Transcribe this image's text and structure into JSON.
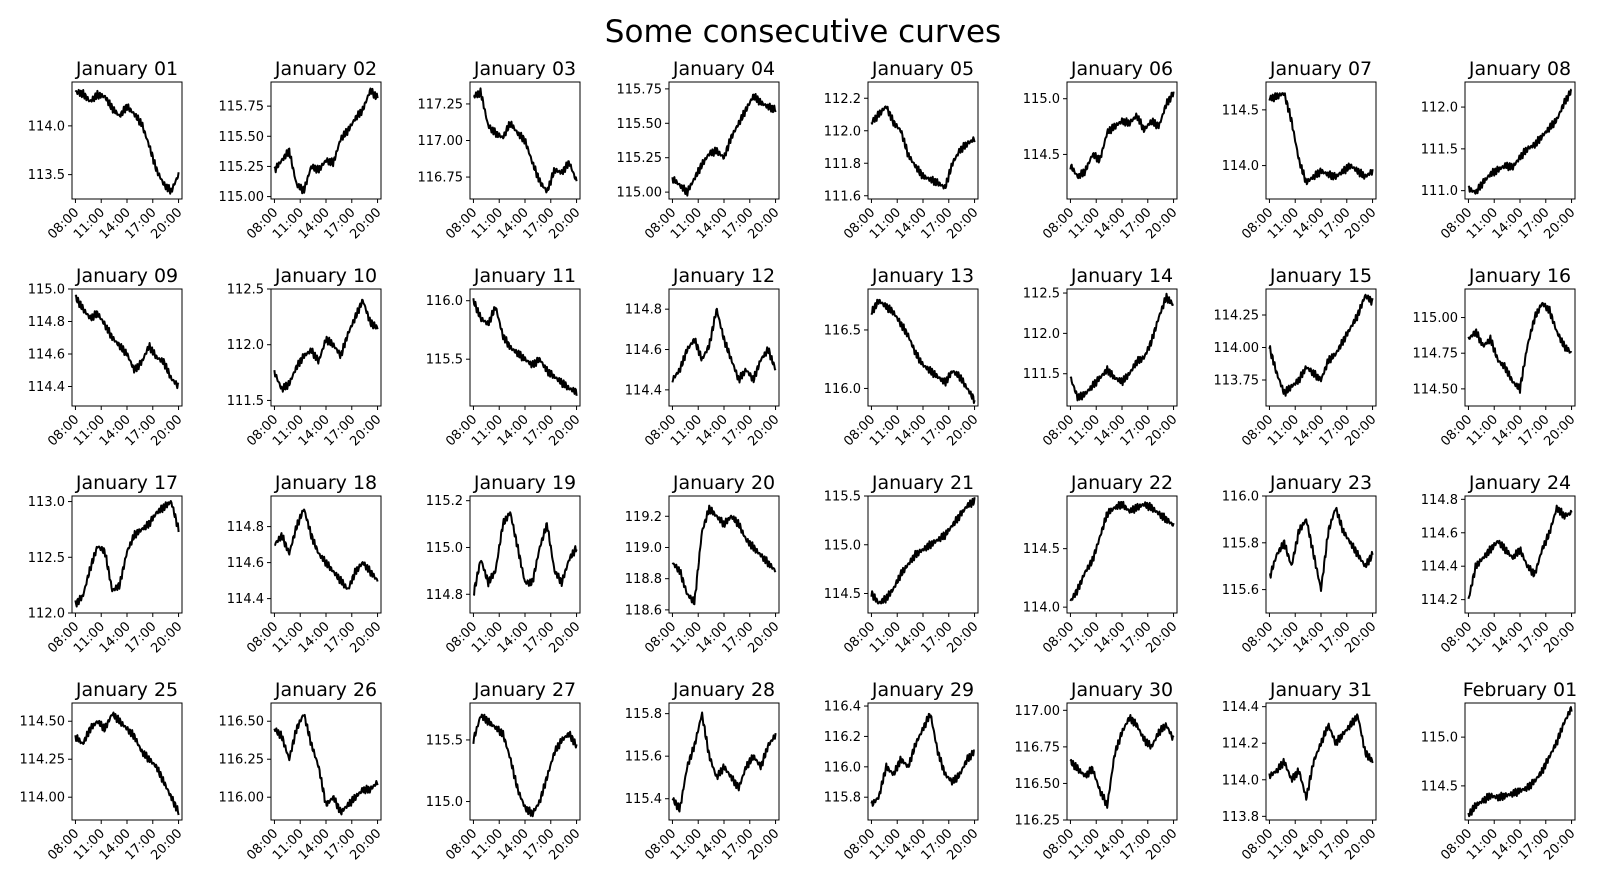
{
  "chart_data": {
    "type": "line",
    "title": "Some consecutive curves",
    "xtick_labels": [
      "08:00",
      "11:00",
      "14:00",
      "17:00",
      "20:00"
    ],
    "x_range_hours": [
      7.6,
      20.4
    ],
    "panels": [
      {
        "title": "January 01",
        "ylim": [
          113.25,
          114.45
        ],
        "yticks": [
          113.5,
          114.0
        ],
        "ytick_labels": [
          "113.5",
          "114.0"
        ],
        "y": [
          114.35,
          114.33,
          114.25,
          114.32,
          114.3,
          114.18,
          114.1,
          114.2,
          114.12,
          114.02,
          113.8,
          113.55,
          113.4,
          113.33,
          113.5
        ]
      },
      {
        "title": "January 02",
        "ylim": [
          114.98,
          115.95
        ],
        "yticks": [
          115.0,
          115.25,
          115.5,
          115.75
        ],
        "ytick_labels": [
          "115.00",
          "115.25",
          "115.50",
          "115.75"
        ],
        "y": [
          115.22,
          115.3,
          115.38,
          115.1,
          115.05,
          115.25,
          115.22,
          115.3,
          115.28,
          115.48,
          115.55,
          115.65,
          115.72,
          115.88,
          115.82
        ]
      },
      {
        "title": "January 03",
        "ylim": [
          116.6,
          117.4
        ],
        "yticks": [
          116.75,
          117.0,
          117.25
        ],
        "ytick_labels": [
          "116.75",
          "117.00",
          "117.25"
        ],
        "y": [
          117.3,
          117.33,
          117.1,
          117.05,
          117.02,
          117.12,
          117.05,
          117.0,
          116.85,
          116.72,
          116.65,
          116.8,
          116.78,
          116.85,
          116.72
        ]
      },
      {
        "title": "January 04",
        "ylim": [
          114.95,
          115.8
        ],
        "yticks": [
          115.0,
          115.25,
          115.5,
          115.75
        ],
        "ytick_labels": [
          "115.00",
          "115.25",
          "115.50",
          "115.75"
        ],
        "y": [
          115.1,
          115.05,
          115.0,
          115.1,
          115.2,
          115.28,
          115.3,
          115.25,
          115.4,
          115.5,
          115.6,
          115.7,
          115.65,
          115.62,
          115.6
        ]
      },
      {
        "title": "January 05",
        "ylim": [
          111.58,
          112.3
        ],
        "yticks": [
          111.6,
          111.8,
          112.0,
          112.2
        ],
        "ytick_labels": [
          "111.6",
          "111.8",
          "112.0",
          "112.2"
        ],
        "y": [
          112.05,
          112.1,
          112.15,
          112.05,
          112.0,
          111.85,
          111.78,
          111.72,
          111.7,
          111.68,
          111.65,
          111.8,
          111.88,
          111.92,
          111.95
        ]
      },
      {
        "title": "January 06",
        "ylim": [
          114.1,
          115.15
        ],
        "yticks": [
          114.5,
          115.0
        ],
        "ytick_labels": [
          "114.5",
          "115.0"
        ],
        "y": [
          114.4,
          114.3,
          114.35,
          114.5,
          114.45,
          114.7,
          114.75,
          114.8,
          114.78,
          114.85,
          114.72,
          114.8,
          114.75,
          114.95,
          115.05
        ]
      },
      {
        "title": "January 07",
        "ylim": [
          113.7,
          114.75
        ],
        "yticks": [
          114.0,
          114.5
        ],
        "ytick_labels": [
          "114.0",
          "114.5"
        ],
        "y": [
          114.6,
          114.62,
          114.65,
          114.4,
          114.05,
          113.85,
          113.9,
          113.95,
          113.92,
          113.9,
          113.95,
          114.0,
          113.95,
          113.9,
          113.95
        ]
      },
      {
        "title": "January 08",
        "ylim": [
          110.9,
          112.3
        ],
        "yticks": [
          111.0,
          111.5,
          112.0
        ],
        "ytick_labels": [
          "111.0",
          "111.5",
          "112.0"
        ],
        "y": [
          111.02,
          110.98,
          111.1,
          111.2,
          111.25,
          111.3,
          111.28,
          111.4,
          111.5,
          111.55,
          111.65,
          111.75,
          111.85,
          112.05,
          112.2
        ]
      },
      {
        "title": "January 09",
        "ylim": [
          114.28,
          115.0
        ],
        "yticks": [
          114.4,
          114.6,
          114.8,
          115.0
        ],
        "ytick_labels": [
          "114.4",
          "114.6",
          "114.8",
          "115.0"
        ],
        "y": [
          114.95,
          114.88,
          114.82,
          114.85,
          114.78,
          114.7,
          114.65,
          114.6,
          114.5,
          114.55,
          114.65,
          114.58,
          114.55,
          114.45,
          114.4
        ]
      },
      {
        "title": "January 10",
        "ylim": [
          111.45,
          112.5
        ],
        "yticks": [
          111.5,
          112.0,
          112.5
        ],
        "ytick_labels": [
          "111.5",
          "112.0",
          "112.5"
        ],
        "y": [
          111.75,
          111.6,
          111.65,
          111.8,
          111.9,
          111.95,
          111.85,
          112.05,
          112.0,
          111.9,
          112.1,
          112.25,
          112.4,
          112.2,
          112.15
        ]
      },
      {
        "title": "January 11",
        "ylim": [
          115.1,
          116.1
        ],
        "yticks": [
          115.5,
          116.0
        ],
        "ytick_labels": [
          "115.5",
          "116.0"
        ],
        "y": [
          116.0,
          115.85,
          115.8,
          115.95,
          115.7,
          115.6,
          115.55,
          115.5,
          115.45,
          115.5,
          115.4,
          115.35,
          115.3,
          115.25,
          115.22
        ]
      },
      {
        "title": "January 12",
        "ylim": [
          114.32,
          114.9
        ],
        "yticks": [
          114.4,
          114.6,
          114.8
        ],
        "ytick_labels": [
          "114.4",
          "114.6",
          "114.8"
        ],
        "y": [
          114.45,
          114.5,
          114.6,
          114.65,
          114.55,
          114.62,
          114.8,
          114.65,
          114.55,
          114.45,
          114.5,
          114.45,
          114.55,
          114.6,
          114.5
        ]
      },
      {
        "title": "January 13",
        "ylim": [
          115.85,
          116.85
        ],
        "yticks": [
          116.0,
          116.5
        ],
        "ytick_labels": [
          "116.0",
          "116.5"
        ],
        "y": [
          116.65,
          116.75,
          116.7,
          116.65,
          116.55,
          116.45,
          116.3,
          116.2,
          116.15,
          116.1,
          116.05,
          116.15,
          116.1,
          116.0,
          115.9
        ]
      },
      {
        "title": "January 14",
        "ylim": [
          111.1,
          112.55
        ],
        "yticks": [
          111.5,
          112.0,
          112.5
        ],
        "ytick_labels": [
          "111.5",
          "112.0",
          "112.5"
        ],
        "y": [
          111.45,
          111.2,
          111.25,
          111.35,
          111.45,
          111.55,
          111.45,
          111.4,
          111.5,
          111.65,
          111.7,
          111.9,
          112.2,
          112.45,
          112.35
        ]
      },
      {
        "title": "January 15",
        "ylim": [
          113.55,
          114.45
        ],
        "yticks": [
          113.75,
          114.0,
          114.25
        ],
        "ytick_labels": [
          "113.75",
          "114.00",
          "114.25"
        ],
        "y": [
          114.0,
          113.8,
          113.65,
          113.7,
          113.75,
          113.85,
          113.8,
          113.75,
          113.9,
          113.95,
          114.05,
          114.15,
          114.25,
          114.4,
          114.35
        ]
      },
      {
        "title": "January 16",
        "ylim": [
          114.38,
          115.2
        ],
        "yticks": [
          114.5,
          114.75,
          115.0
        ],
        "ytick_labels": [
          "114.50",
          "114.75",
          "115.00"
        ],
        "y": [
          114.85,
          114.9,
          114.8,
          114.85,
          114.7,
          114.65,
          114.55,
          114.5,
          114.8,
          115.0,
          115.1,
          115.05,
          114.9,
          114.8,
          114.75
        ]
      },
      {
        "title": "January 17",
        "ylim": [
          112.0,
          113.05
        ],
        "yticks": [
          112.0,
          112.5,
          113.0
        ],
        "ytick_labels": [
          "112.0",
          "112.5",
          "113.0"
        ],
        "y": [
          112.08,
          112.15,
          112.4,
          112.6,
          112.55,
          112.2,
          112.25,
          112.55,
          112.7,
          112.75,
          112.8,
          112.9,
          112.95,
          113.0,
          112.75
        ]
      },
      {
        "title": "January 18",
        "ylim": [
          114.32,
          114.97
        ],
        "yticks": [
          114.4,
          114.6,
          114.8
        ],
        "ytick_labels": [
          "114.4",
          "114.6",
          "114.8"
        ],
        "y": [
          114.7,
          114.75,
          114.65,
          114.8,
          114.9,
          114.75,
          114.65,
          114.6,
          114.55,
          114.5,
          114.45,
          114.55,
          114.6,
          114.55,
          114.5
        ]
      },
      {
        "title": "January 19",
        "ylim": [
          114.72,
          115.22
        ],
        "yticks": [
          114.8,
          115.0,
          115.2
        ],
        "ytick_labels": [
          "114.8",
          "115.0",
          "115.2"
        ],
        "y": [
          114.8,
          114.95,
          114.85,
          114.9,
          115.1,
          115.15,
          115.0,
          114.85,
          114.85,
          115.0,
          115.1,
          114.9,
          114.85,
          114.95,
          115.0
        ]
      },
      {
        "title": "January 20",
        "ylim": [
          118.58,
          119.33
        ],
        "yticks": [
          118.6,
          118.8,
          119.0,
          119.2
        ],
        "ytick_labels": [
          "118.6",
          "118.8",
          "119.0",
          "119.2"
        ],
        "y": [
          118.9,
          118.85,
          118.7,
          118.65,
          119.1,
          119.25,
          119.2,
          119.15,
          119.2,
          119.15,
          119.05,
          119.0,
          118.95,
          118.9,
          118.85
        ]
      },
      {
        "title": "January 21",
        "ylim": [
          114.3,
          115.5
        ],
        "yticks": [
          114.5,
          115.0,
          115.5
        ],
        "ytick_labels": [
          "114.5",
          "115.0",
          "115.5"
        ],
        "y": [
          114.5,
          114.4,
          114.45,
          114.55,
          114.7,
          114.8,
          114.9,
          114.95,
          115.0,
          115.05,
          115.1,
          115.2,
          115.3,
          115.4,
          115.45
        ]
      },
      {
        "title": "January 22",
        "ylim": [
          113.95,
          114.95
        ],
        "yticks": [
          114.0,
          114.5
        ],
        "ytick_labels": [
          "114.0",
          "114.5"
        ],
        "y": [
          114.05,
          114.15,
          114.3,
          114.4,
          114.6,
          114.8,
          114.85,
          114.88,
          114.82,
          114.85,
          114.88,
          114.85,
          114.8,
          114.75,
          114.7
        ]
      },
      {
        "title": "January 23",
        "ylim": [
          115.5,
          116.0
        ],
        "yticks": [
          115.6,
          115.8,
          116.0
        ],
        "ytick_labels": [
          "115.6",
          "115.8",
          "116.0"
        ],
        "y": [
          115.65,
          115.75,
          115.8,
          115.7,
          115.85,
          115.9,
          115.75,
          115.6,
          115.85,
          115.95,
          115.85,
          115.8,
          115.75,
          115.7,
          115.75
        ]
      },
      {
        "title": "January 24",
        "ylim": [
          114.12,
          114.82
        ],
        "yticks": [
          114.2,
          114.4,
          114.6,
          114.8
        ],
        "ytick_labels": [
          "114.2",
          "114.4",
          "114.6",
          "114.8"
        ],
        "y": [
          114.2,
          114.4,
          114.45,
          114.5,
          114.55,
          114.5,
          114.45,
          114.5,
          114.4,
          114.35,
          114.5,
          114.6,
          114.75,
          114.7,
          114.72
        ]
      },
      {
        "title": "January 25",
        "ylim": [
          113.85,
          114.62
        ],
        "yticks": [
          114.0,
          114.25,
          114.5
        ],
        "ytick_labels": [
          "114.00",
          "114.25",
          "114.50"
        ],
        "y": [
          114.4,
          114.35,
          114.45,
          114.5,
          114.45,
          114.55,
          114.5,
          114.45,
          114.4,
          114.3,
          114.25,
          114.2,
          114.1,
          114.0,
          113.9
        ]
      },
      {
        "title": "January 26",
        "ylim": [
          115.85,
          116.62
        ],
        "yticks": [
          116.0,
          116.25,
          116.5
        ],
        "ytick_labels": [
          "116.00",
          "116.25",
          "116.50"
        ],
        "y": [
          116.45,
          116.4,
          116.25,
          116.45,
          116.55,
          116.35,
          116.2,
          115.95,
          116.0,
          115.9,
          115.95,
          116.0,
          116.05,
          116.05,
          116.1
        ]
      },
      {
        "title": "January 27",
        "ylim": [
          114.85,
          115.8
        ],
        "yticks": [
          115.0,
          115.5
        ],
        "ytick_labels": [
          "115.0",
          "115.5"
        ],
        "y": [
          115.5,
          115.7,
          115.65,
          115.6,
          115.55,
          115.35,
          115.1,
          114.95,
          114.9,
          115.0,
          115.2,
          115.4,
          115.5,
          115.55,
          115.45
        ]
      },
      {
        "title": "January 28",
        "ylim": [
          115.3,
          115.85
        ],
        "yticks": [
          115.4,
          115.6,
          115.8
        ],
        "ytick_labels": [
          "115.4",
          "115.6",
          "115.8"
        ],
        "y": [
          115.4,
          115.35,
          115.55,
          115.65,
          115.8,
          115.6,
          115.5,
          115.55,
          115.5,
          115.45,
          115.55,
          115.6,
          115.55,
          115.65,
          115.7
        ]
      },
      {
        "title": "January 29",
        "ylim": [
          115.65,
          116.42
        ],
        "yticks": [
          115.8,
          116.0,
          116.2,
          116.4
        ],
        "ytick_labels": [
          "115.8",
          "116.0",
          "116.2",
          "116.4"
        ],
        "y": [
          115.75,
          115.8,
          116.0,
          115.95,
          116.05,
          116.0,
          116.15,
          116.25,
          116.35,
          116.1,
          115.95,
          115.9,
          115.95,
          116.05,
          116.1
        ]
      },
      {
        "title": "January 30",
        "ylim": [
          116.25,
          117.05
        ],
        "yticks": [
          116.25,
          116.5,
          116.75,
          117.0
        ],
        "ytick_labels": [
          "116.25",
          "116.50",
          "116.75",
          "117.00"
        ],
        "y": [
          116.65,
          116.6,
          116.55,
          116.6,
          116.45,
          116.35,
          116.7,
          116.85,
          116.95,
          116.9,
          116.8,
          116.75,
          116.85,
          116.9,
          116.8
        ]
      },
      {
        "title": "January 31",
        "ylim": [
          113.78,
          114.42
        ],
        "yticks": [
          113.8,
          114.0,
          114.2,
          114.4
        ],
        "ytick_labels": [
          "113.8",
          "114.0",
          "114.2",
          "114.4"
        ],
        "y": [
          114.02,
          114.05,
          114.1,
          114.0,
          114.05,
          113.9,
          114.1,
          114.2,
          114.3,
          114.2,
          114.25,
          114.3,
          114.35,
          114.15,
          114.1
        ]
      },
      {
        "title": "February 01",
        "ylim": [
          114.15,
          115.35
        ],
        "yticks": [
          114.5,
          115.0
        ],
        "ytick_labels": [
          "114.5",
          "115.0"
        ],
        "y": [
          114.2,
          114.3,
          114.35,
          114.4,
          114.38,
          114.4,
          114.42,
          114.45,
          114.48,
          114.55,
          114.65,
          114.8,
          114.95,
          115.15,
          115.3
        ]
      }
    ]
  }
}
